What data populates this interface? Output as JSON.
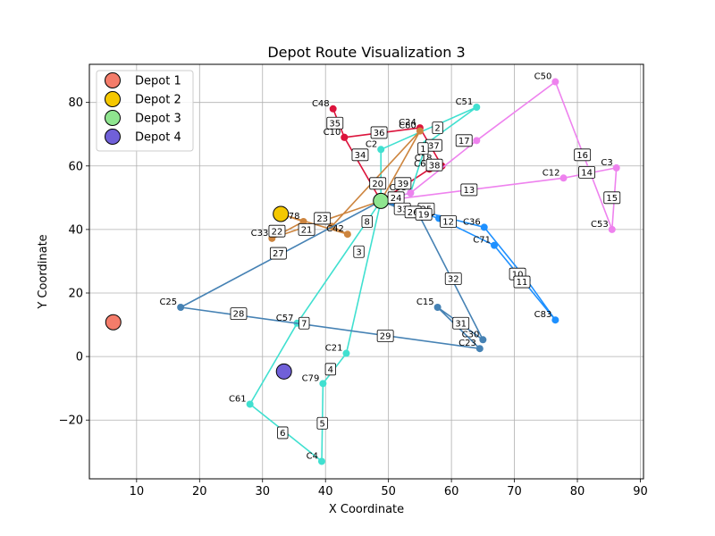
{
  "chart_data": {
    "type": "scatter",
    "title": "Depot Route Visualization 3",
    "xlabel": "X Coordinate",
    "ylabel": "Y Coordinate",
    "xlim": [
      2.5,
      90.5
    ],
    "ylim": [
      -38.5,
      92
    ],
    "xticks": [
      10,
      20,
      30,
      40,
      50,
      60,
      70,
      80,
      90
    ],
    "yticks": [
      -20,
      0,
      20,
      40,
      60,
      80
    ],
    "ytick_labels": [
      "−20",
      "0",
      "20",
      "40",
      "60",
      "80"
    ],
    "grid": true,
    "legend_position": "top-left",
    "depots": [
      {
        "name": "Depot 1",
        "x": 6.3,
        "y": 10.8,
        "color": "#f47c6a"
      },
      {
        "name": "Depot 2",
        "x": 32.9,
        "y": 44.9,
        "color": "#f5c800"
      },
      {
        "name": "Depot 3",
        "x": 48.8,
        "y": 49.0,
        "color": "#8fe58f"
      },
      {
        "name": "Depot 4",
        "x": 33.4,
        "y": -4.7,
        "color": "#7060d8"
      }
    ],
    "customers": [
      {
        "label": "C48",
        "x": 41.2,
        "y": 78.0
      },
      {
        "label": "C51",
        "x": 64.0,
        "y": 78.5
      },
      {
        "label": "C50",
        "x": 76.5,
        "y": 86.5
      },
      {
        "label": "C24",
        "x": 55.0,
        "y": 72.0
      },
      {
        "label": "C80",
        "x": 55.0,
        "y": 71.0
      },
      {
        "label": "C10",
        "x": 43.0,
        "y": 69.0
      },
      {
        "label": "C2",
        "x": 48.8,
        "y": 65.2
      },
      {
        "label": "C18",
        "x": 57.5,
        "y": 60.8
      },
      {
        "label": "C6",
        "x": 56.5,
        "y": 59.0
      },
      {
        "label": "C3",
        "x": 86.2,
        "y": 59.4
      },
      {
        "label": "C12",
        "x": 77.8,
        "y": 56.2
      },
      {
        "label": "C53",
        "x": 85.5,
        "y": 40.0
      },
      {
        "label": "C78",
        "x": 36.5,
        "y": 42.5
      },
      {
        "label": "C33",
        "x": 31.5,
        "y": 37.2
      },
      {
        "label": "C42",
        "x": 43.5,
        "y": 38.5
      },
      {
        "label": "C36",
        "x": 65.2,
        "y": 40.7
      },
      {
        "label": "C71",
        "x": 66.8,
        "y": 35.0
      },
      {
        "label": "C83",
        "x": 76.5,
        "y": 11.5
      },
      {
        "label": "C25",
        "x": 17.0,
        "y": 15.5
      },
      {
        "label": "C15",
        "x": 57.8,
        "y": 15.5
      },
      {
        "label": "C57",
        "x": 35.5,
        "y": 10.5
      },
      {
        "label": "C30",
        "x": 65.0,
        "y": 5.3
      },
      {
        "label": "C23",
        "x": 64.5,
        "y": 2.5
      },
      {
        "label": "C21",
        "x": 43.3,
        "y": 1.0
      },
      {
        "label": "C79",
        "x": 39.6,
        "y": -8.5
      },
      {
        "label": "C61",
        "x": 28.0,
        "y": -15.0
      },
      {
        "label": "C4",
        "x": 39.4,
        "y": -33.0
      },
      {
        "label": "C55",
        "x": 53.5,
        "y": 51.5
      },
      {
        "label": "C60",
        "x": 58.0,
        "y": 43.5
      }
    ],
    "routes": [
      {
        "color": "#dc143c",
        "points": [
          [
            48.8,
            49.0
          ],
          [
            43.0,
            69.0
          ],
          [
            41.2,
            78.0
          ],
          [
            43.0,
            69.0
          ],
          [
            55.0,
            72.0
          ],
          [
            58.5,
            60.0
          ],
          [
            56.5,
            59.0
          ],
          [
            48.8,
            49.0
          ]
        ]
      },
      {
        "color": "#40e0d0",
        "points": [
          [
            48.8,
            49.0
          ],
          [
            48.8,
            65.2
          ],
          [
            64.0,
            78.5
          ],
          [
            56.0,
            67.0
          ],
          [
            53.5,
            51.5
          ],
          [
            48.8,
            49.0
          ],
          [
            43.3,
            1.0
          ],
          [
            39.6,
            -8.5
          ],
          [
            39.4,
            -33.0
          ],
          [
            28.0,
            -15.0
          ],
          [
            35.5,
            10.5
          ],
          [
            48.8,
            49.0
          ]
        ]
      },
      {
        "color": "#cd853f",
        "points": [
          [
            32.9,
            44.9
          ],
          [
            36.5,
            42.5
          ],
          [
            31.5,
            37.2
          ],
          [
            48.8,
            49.0
          ],
          [
            55.0,
            71.0
          ],
          [
            41.0,
            41.0
          ],
          [
            43.5,
            38.5
          ],
          [
            32.9,
            44.9
          ]
        ]
      },
      {
        "color": "#ee82ee",
        "points": [
          [
            48.8,
            49.0
          ],
          [
            77.8,
            56.2
          ],
          [
            86.2,
            59.4
          ],
          [
            85.5,
            40.0
          ],
          [
            76.5,
            86.5
          ],
          [
            64.0,
            68.0
          ],
          [
            53.5,
            51.5
          ],
          [
            48.8,
            49.0
          ]
        ]
      },
      {
        "color": "#1e90ff",
        "points": [
          [
            48.8,
            49.0
          ],
          [
            65.2,
            40.7
          ],
          [
            72.0,
            24.0
          ],
          [
            76.5,
            11.5
          ],
          [
            66.8,
            35.0
          ],
          [
            58.0,
            43.5
          ],
          [
            48.8,
            49.0
          ]
        ]
      },
      {
        "color": "#4682b4",
        "points": [
          [
            48.8,
            49.0
          ],
          [
            17.0,
            15.5
          ],
          [
            64.5,
            2.5
          ],
          [
            57.8,
            15.5
          ],
          [
            65.0,
            5.3
          ],
          [
            55.0,
            44.0
          ],
          [
            48.8,
            49.0
          ]
        ]
      }
    ],
    "step_labels": [
      {
        "text": "2",
        "x": 57.8,
        "y": 72.0
      },
      {
        "text": "35",
        "x": 41.5,
        "y": 73.5
      },
      {
        "text": "36",
        "x": 48.5,
        "y": 70.5
      },
      {
        "text": "34",
        "x": 45.5,
        "y": 63.5
      },
      {
        "text": "37",
        "x": 57.2,
        "y": 66.5
      },
      {
        "text": "1",
        "x": 55.5,
        "y": 65.5
      },
      {
        "text": "38",
        "x": 57.3,
        "y": 60.3
      },
      {
        "text": "17",
        "x": 62.0,
        "y": 68.0
      },
      {
        "text": "16",
        "x": 80.8,
        "y": 63.5
      },
      {
        "text": "14",
        "x": 81.5,
        "y": 58.0
      },
      {
        "text": "15",
        "x": 85.5,
        "y": 50.0
      },
      {
        "text": "13",
        "x": 62.8,
        "y": 52.5
      },
      {
        "text": "39",
        "x": 52.3,
        "y": 54.5
      },
      {
        "text": "20",
        "x": 48.3,
        "y": 54.5
      },
      {
        "text": "24",
        "x": 51.2,
        "y": 50.0
      },
      {
        "text": "25",
        "x": 56.0,
        "y": 46.5
      },
      {
        "text": "33",
        "x": 52.2,
        "y": 46.5
      },
      {
        "text": "26",
        "x": 53.9,
        "y": 45.5
      },
      {
        "text": "19",
        "x": 55.6,
        "y": 44.8
      },
      {
        "text": "8",
        "x": 46.6,
        "y": 42.5
      },
      {
        "text": "23",
        "x": 39.5,
        "y": 43.5
      },
      {
        "text": "21",
        "x": 37.0,
        "y": 40.0
      },
      {
        "text": "22",
        "x": 32.3,
        "y": 39.5
      },
      {
        "text": "12",
        "x": 59.5,
        "y": 42.5
      },
      {
        "text": "3",
        "x": 45.3,
        "y": 33.0
      },
      {
        "text": "27",
        "x": 32.5,
        "y": 32.5
      },
      {
        "text": "32",
        "x": 60.3,
        "y": 24.5
      },
      {
        "text": "10",
        "x": 70.5,
        "y": 26.0
      },
      {
        "text": "11",
        "x": 71.2,
        "y": 23.5
      },
      {
        "text": "28",
        "x": 26.2,
        "y": 13.5
      },
      {
        "text": "7",
        "x": 36.6,
        "y": 10.5
      },
      {
        "text": "31",
        "x": 61.5,
        "y": 10.5
      },
      {
        "text": "29",
        "x": 49.5,
        "y": 6.5
      },
      {
        "text": "4",
        "x": 40.8,
        "y": -4.0
      },
      {
        "text": "5",
        "x": 39.5,
        "y": -21.0
      },
      {
        "text": "6",
        "x": 33.2,
        "y": -24.0
      }
    ]
  }
}
